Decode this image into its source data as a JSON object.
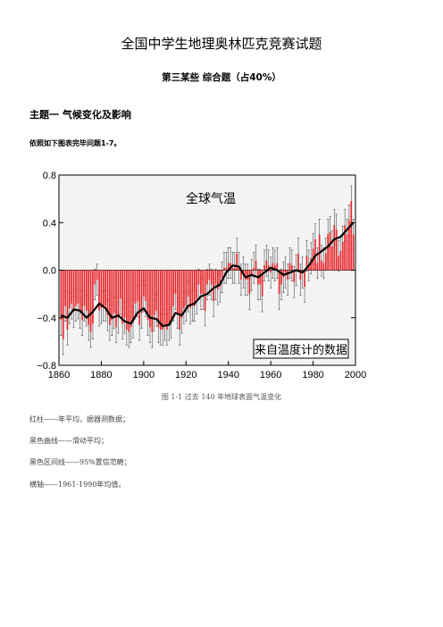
{
  "document": {
    "title": "全国中学生地理奥林匹克竞赛试题",
    "section": "第三某些  综合题（占40%）",
    "topic": "主题一    气候变化及影响",
    "instruction": "依照如下图表完毕问题1-7。",
    "caption": "图 1-1  过去 140 年地球表面气温变化",
    "notes": [
      "红柱——年平均，据器测数据；",
      "黑色曲线——滑动平均；",
      "黑色区间线——95%置信范畴；",
      "横轴——1961-1990年均值。"
    ]
  },
  "chart_data": {
    "type": "bar",
    "title": "全球气温",
    "annotation": "来自温度计的数据",
    "xlim": [
      1860,
      2000
    ],
    "ylim": [
      -0.8,
      0.8
    ],
    "xticks": [
      "1860",
      "1880",
      "1900",
      "1920",
      "1940",
      "1960",
      "1980",
      "2000"
    ],
    "yticks": [
      "0.8",
      "0.4",
      "0.0",
      "−0.4",
      "−0.8"
    ],
    "years": [
      1861,
      1862,
      1863,
      1864,
      1865,
      1866,
      1867,
      1868,
      1869,
      1870,
      1871,
      1872,
      1873,
      1874,
      1875,
      1876,
      1877,
      1878,
      1879,
      1880,
      1881,
      1882,
      1883,
      1884,
      1885,
      1886,
      1887,
      1888,
      1889,
      1890,
      1891,
      1892,
      1893,
      1894,
      1895,
      1896,
      1897,
      1898,
      1899,
      1900,
      1901,
      1902,
      1903,
      1904,
      1905,
      1906,
      1907,
      1908,
      1909,
      1910,
      1911,
      1912,
      1913,
      1914,
      1915,
      1916,
      1917,
      1918,
      1919,
      1920,
      1921,
      1922,
      1923,
      1924,
      1925,
      1926,
      1927,
      1928,
      1929,
      1930,
      1931,
      1932,
      1933,
      1934,
      1935,
      1936,
      1937,
      1938,
      1939,
      1940,
      1941,
      1942,
      1943,
      1944,
      1945,
      1946,
      1947,
      1948,
      1949,
      1950,
      1951,
      1952,
      1953,
      1954,
      1955,
      1956,
      1957,
      1958,
      1959,
      1960,
      1961,
      1962,
      1963,
      1964,
      1965,
      1966,
      1967,
      1968,
      1969,
      1970,
      1971,
      1972,
      1973,
      1974,
      1975,
      1976,
      1977,
      1978,
      1979,
      1980,
      1981,
      1982,
      1983,
      1984,
      1985,
      1986,
      1987,
      1988,
      1989,
      1990,
      1991,
      1992,
      1993,
      1994,
      1995,
      1996,
      1997,
      1998,
      1999
    ],
    "annual": [
      -0.42,
      -0.58,
      -0.3,
      -0.5,
      -0.32,
      -0.28,
      -0.35,
      -0.3,
      -0.28,
      -0.36,
      -0.42,
      -0.3,
      -0.34,
      -0.46,
      -0.52,
      -0.45,
      -0.12,
      -0.08,
      -0.34,
      -0.32,
      -0.3,
      -0.3,
      -0.38,
      -0.46,
      -0.42,
      -0.36,
      -0.48,
      -0.4,
      -0.24,
      -0.45,
      -0.4,
      -0.5,
      -0.52,
      -0.48,
      -0.44,
      -0.28,
      -0.26,
      -0.46,
      -0.36,
      -0.22,
      -0.26,
      -0.42,
      -0.48,
      -0.52,
      -0.38,
      -0.34,
      -0.48,
      -0.5,
      -0.5,
      -0.46,
      -0.5,
      -0.46,
      -0.44,
      -0.3,
      -0.2,
      -0.36,
      -0.5,
      -0.4,
      -0.32,
      -0.3,
      -0.22,
      -0.32,
      -0.3,
      -0.3,
      -0.24,
      -0.12,
      -0.2,
      -0.2,
      -0.34,
      -0.12,
      -0.08,
      -0.12,
      -0.26,
      -0.12,
      -0.16,
      -0.14,
      -0.06,
      0.02,
      0.02,
      0.06,
      0.06,
      0.02,
      0.02,
      0.14,
      0.02,
      -0.08,
      -0.02,
      -0.08,
      -0.08,
      -0.2,
      -0.04,
      0.02,
      0.08,
      -0.12,
      -0.12,
      -0.22,
      0.04,
      0.08,
      0.04,
      -0.02,
      0.06,
      0.04,
      0.06,
      -0.2,
      -0.12,
      -0.06,
      -0.02,
      -0.08,
      0.06,
      0.04,
      -0.1,
      0.0,
      0.14,
      -0.08,
      -0.02,
      -0.14,
      0.12,
      0.04,
      0.1,
      0.18,
      0.26,
      0.06,
      0.3,
      0.08,
      0.06,
      0.14,
      0.3,
      0.32,
      0.2,
      0.38,
      0.34,
      0.12,
      0.16,
      0.24,
      0.38,
      0.3,
      0.42,
      0.58,
      0.3
    ],
    "smoothed": [
      [
        1861,
        -0.38
      ],
      [
        1864,
        -0.4
      ],
      [
        1867,
        -0.33
      ],
      [
        1870,
        -0.34
      ],
      [
        1873,
        -0.4
      ],
      [
        1876,
        -0.35
      ],
      [
        1879,
        -0.28
      ],
      [
        1882,
        -0.32
      ],
      [
        1885,
        -0.4
      ],
      [
        1888,
        -0.38
      ],
      [
        1891,
        -0.43
      ],
      [
        1894,
        -0.45
      ],
      [
        1897,
        -0.36
      ],
      [
        1900,
        -0.32
      ],
      [
        1903,
        -0.4
      ],
      [
        1906,
        -0.41
      ],
      [
        1909,
        -0.47
      ],
      [
        1912,
        -0.46
      ],
      [
        1915,
        -0.36
      ],
      [
        1918,
        -0.38
      ],
      [
        1921,
        -0.3
      ],
      [
        1924,
        -0.28
      ],
      [
        1927,
        -0.22
      ],
      [
        1930,
        -0.2
      ],
      [
        1933,
        -0.15
      ],
      [
        1936,
        -0.12
      ],
      [
        1939,
        -0.02
      ],
      [
        1942,
        0.04
      ],
      [
        1945,
        0.03
      ],
      [
        1948,
        -0.06
      ],
      [
        1951,
        -0.04
      ],
      [
        1954,
        -0.06
      ],
      [
        1957,
        -0.02
      ],
      [
        1960,
        0.02
      ],
      [
        1963,
        0.0
      ],
      [
        1966,
        -0.04
      ],
      [
        1969,
        -0.02
      ],
      [
        1972,
        0.0
      ],
      [
        1975,
        -0.02
      ],
      [
        1978,
        0.04
      ],
      [
        1981,
        0.12
      ],
      [
        1984,
        0.16
      ],
      [
        1987,
        0.2
      ],
      [
        1990,
        0.26
      ],
      [
        1993,
        0.28
      ],
      [
        1996,
        0.34
      ],
      [
        1999,
        0.4
      ]
    ]
  }
}
